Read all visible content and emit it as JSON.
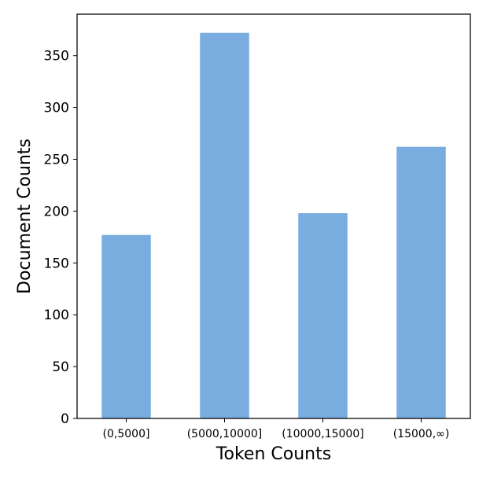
{
  "chart_data": {
    "type": "bar",
    "categories": [
      "(0,5000]",
      "(5000,10000]",
      "(10000,15000]",
      "(15000,∞)"
    ],
    "values": [
      177,
      372,
      198,
      262
    ],
    "xlabel": "Token Counts",
    "ylabel": "Document Counts",
    "ylim": [
      0,
      390
    ],
    "yticks": [
      0,
      50,
      100,
      150,
      200,
      250,
      300,
      350
    ],
    "bar_color": "#7aaddf",
    "grid": false,
    "legend": "none"
  }
}
